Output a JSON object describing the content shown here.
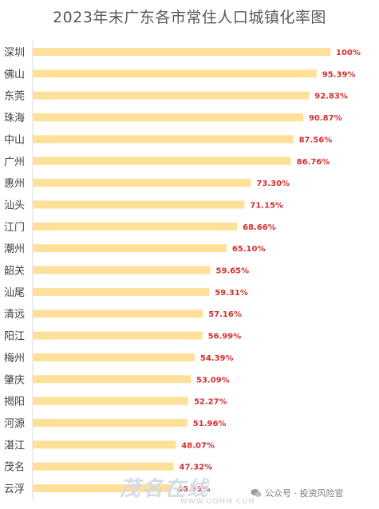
{
  "title": "2023年末广东各市常住人口城镇化率图",
  "chart_data": {
    "type": "bar",
    "orientation": "horizontal",
    "title": "2023年末广东各市常住人口城镇化率图",
    "categories": [
      "深圳",
      "佛山",
      "东莞",
      "珠海",
      "中山",
      "广州",
      "惠州",
      "汕头",
      "江门",
      "潮州",
      "韶关",
      "汕尾",
      "清远",
      "阳江",
      "梅州",
      "肇庆",
      "揭阳",
      "河源",
      "湛江",
      "茂名",
      "云浮"
    ],
    "values": [
      100,
      95.39,
      92.83,
      90.87,
      87.56,
      86.76,
      73.3,
      71.15,
      68.66,
      65.1,
      59.65,
      59.31,
      57.16,
      56.99,
      54.39,
      53.09,
      52.27,
      51.96,
      48.07,
      47.32,
      46.59
    ],
    "data_labels": [
      "100%",
      "95.39%",
      "92.83%",
      "90.87%",
      "87.56%",
      "86.76%",
      "73.30%",
      "71.15%",
      "68.66%",
      "65.10%",
      "59.65%",
      "59.31%",
      "57.16%",
      "56.99%",
      "54.39%",
      "53.09%",
      "52.27%",
      "51.96%",
      "48.07%",
      "47.32%",
      "46.59%"
    ],
    "xlim": [
      0,
      100
    ],
    "bar_color": "#ffe09a",
    "label_color": "#d32f2f",
    "axis_color": "#d9d9d9",
    "grid": false,
    "legend": "none"
  },
  "watermark": {
    "logo_text": "茂名在线",
    "url_text": "WWW.GDMM.COM",
    "account_text": "公众号 · 投资风险官",
    "account_icon": "wechat-icon"
  }
}
